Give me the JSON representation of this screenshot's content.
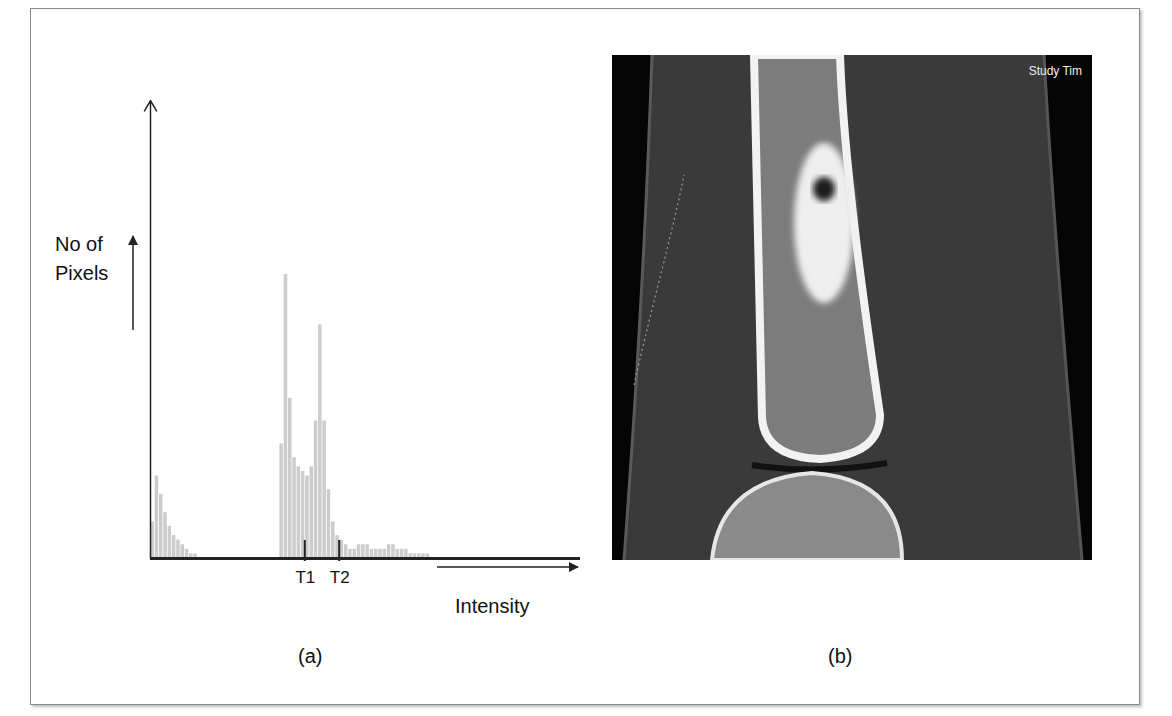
{
  "chart_data": {
    "type": "histogram",
    "x_label": "Intensity",
    "y_label": "No of Pixels",
    "bins": [
      0,
      1,
      2,
      3,
      4,
      5,
      6,
      7,
      8,
      9,
      10,
      11,
      12,
      13,
      14,
      15,
      16,
      17,
      18,
      19,
      20,
      21,
      22,
      23,
      24,
      25,
      26,
      27,
      28,
      29,
      30,
      31,
      32,
      33,
      34,
      35,
      36,
      37,
      38,
      39,
      40,
      41,
      42,
      43,
      44,
      45,
      46,
      47,
      48,
      49,
      50,
      51,
      52,
      53,
      54,
      55,
      56,
      57,
      58,
      59,
      60,
      61,
      62,
      63,
      64,
      65,
      66,
      67,
      68,
      69,
      70
    ],
    "counts": [
      8,
      18,
      14,
      10,
      7,
      5,
      4,
      3,
      2,
      1,
      1,
      0,
      0,
      0,
      0,
      0,
      0,
      0,
      0,
      0,
      0,
      0,
      0,
      0,
      0,
      0,
      0,
      0,
      0,
      0,
      25,
      62,
      35,
      22,
      20,
      19,
      18,
      20,
      30,
      51,
      30,
      15,
      8,
      5,
      4,
      3,
      2,
      2,
      3,
      3,
      3,
      2,
      2,
      2,
      2,
      3,
      3,
      2,
      2,
      2,
      1,
      1,
      1,
      1,
      1,
      0,
      0,
      0,
      0,
      0
    ],
    "color": "#cccccc",
    "xlim": [
      0,
      100
    ],
    "ylim": [
      0,
      100
    ],
    "xticks": [
      {
        "value": 36,
        "label": "T1"
      },
      {
        "value": 44,
        "label": "T2"
      }
    ],
    "yticks": [],
    "tick_labels": "x",
    "grid": false
  },
  "panels": [
    {
      "label": "(a)"
    },
    {
      "label": "(b)",
      "image_text": "Study Tim"
    }
  ]
}
